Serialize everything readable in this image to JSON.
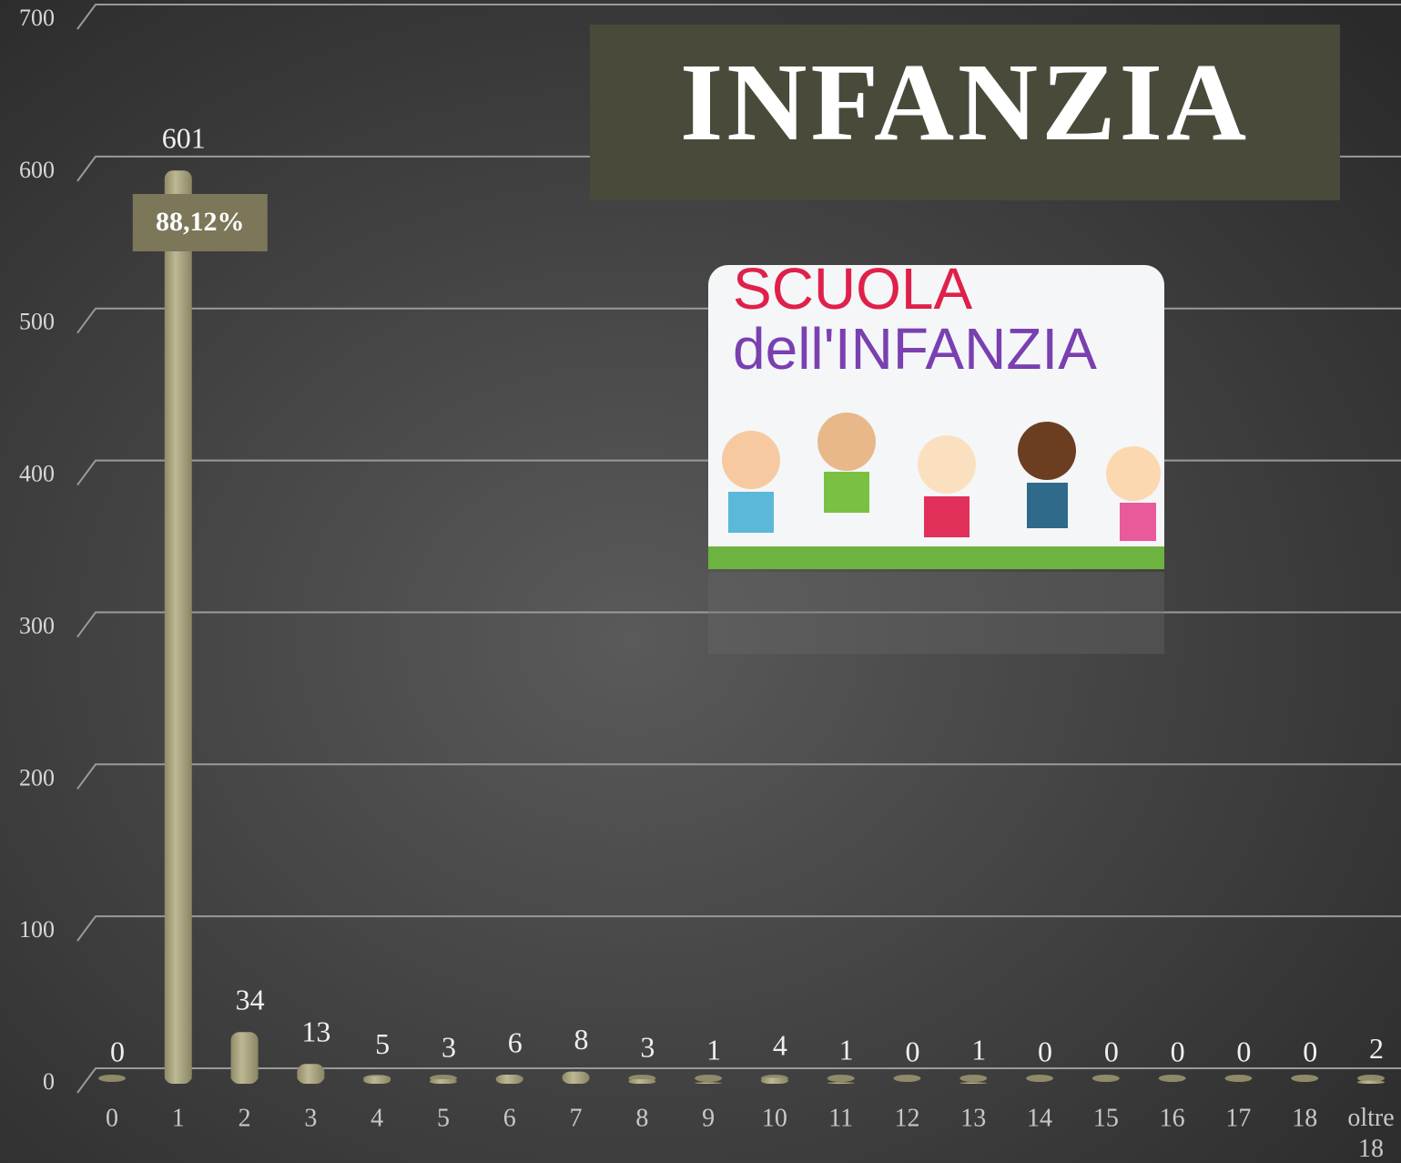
{
  "chart_data": {
    "type": "bar",
    "title": "INFANZIA",
    "categories": [
      "0",
      "1",
      "2",
      "3",
      "4",
      "5",
      "6",
      "7",
      "8",
      "9",
      "10",
      "11",
      "12",
      "13",
      "14",
      "15",
      "16",
      "17",
      "18",
      "oltre 18"
    ],
    "values": [
      0,
      601,
      34,
      13,
      5,
      3,
      6,
      8,
      3,
      1,
      4,
      1,
      0,
      1,
      0,
      0,
      0,
      0,
      0,
      2
    ],
    "color": "#a8a37f",
    "ylim": [
      0,
      700
    ],
    "yticks": [
      0,
      100,
      200,
      300,
      400,
      500,
      600,
      700
    ],
    "grid": true,
    "annotation": "88,12%",
    "image_text": [
      "SCUOLA",
      "dell'INFANZIA"
    ]
  }
}
